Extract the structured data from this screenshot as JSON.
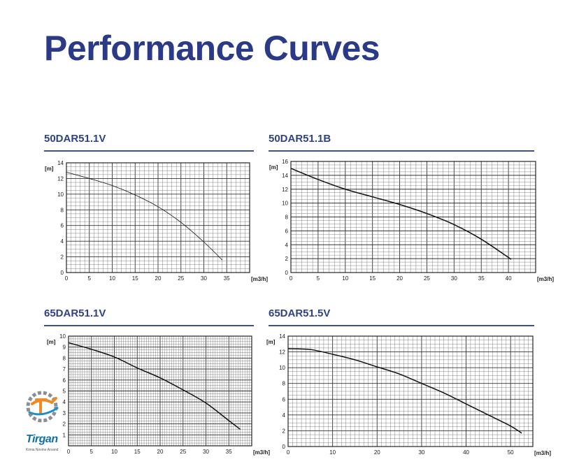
{
  "page": {
    "title": "Performance Curves"
  },
  "brand": {
    "name": "Tirgan",
    "tagline": "Kimia Novine Arvand"
  },
  "charts": [
    {
      "id": "50DAR51.1V",
      "title": "50DAR51.1V",
      "ylabel": "[m]",
      "xlabel": "[m3/h]"
    },
    {
      "id": "50DAR51.1B",
      "title": "50DAR51.1B",
      "ylabel": "[m]",
      "xlabel": "[m3/h]"
    },
    {
      "id": "65DAR51.1V",
      "title": "65DAR51.1V",
      "ylabel": "[m]",
      "xlabel": "[m3/h]"
    },
    {
      "id": "65DAR51.5V",
      "title": "65DAR51.5V",
      "ylabel": "[m]",
      "xlabel": "[m3/h]"
    }
  ],
  "chart_data": [
    {
      "type": "line",
      "title": "50DAR51.1V",
      "xlabel": "[m3/h]",
      "ylabel": "[m]",
      "xlim": [
        0,
        40
      ],
      "ylim": [
        0,
        14
      ],
      "xticks": [
        0,
        5,
        10,
        15,
        20,
        25,
        30,
        35
      ],
      "yticks": [
        0,
        2,
        4,
        6,
        8,
        10,
        12,
        14
      ],
      "grid": true,
      "series": [
        {
          "x": [
            0,
            5,
            10,
            15,
            20,
            25,
            30,
            34
          ],
          "y": [
            12.8,
            12.0,
            11.1,
            9.9,
            8.4,
            6.4,
            3.9,
            1.6
          ]
        }
      ]
    },
    {
      "type": "line",
      "title": "50DAR51.1B",
      "xlabel": "[m3/h]",
      "ylabel": "[m]",
      "xlim": [
        0,
        45
      ],
      "ylim": [
        0,
        16
      ],
      "xticks": [
        0,
        5,
        10,
        15,
        20,
        25,
        30,
        35,
        40
      ],
      "yticks": [
        0,
        2,
        4,
        6,
        8,
        10,
        12,
        14,
        16
      ],
      "grid": true,
      "series": [
        {
          "x": [
            0,
            5,
            10,
            15,
            20,
            25,
            30,
            35,
            40.5
          ],
          "y": [
            15.0,
            13.4,
            12.0,
            10.9,
            9.8,
            8.5,
            6.9,
            4.8,
            1.9
          ]
        }
      ]
    },
    {
      "type": "line",
      "title": "65DAR51.1V",
      "xlabel": "[m3/h]",
      "ylabel": "[m]",
      "xlim": [
        0,
        40
      ],
      "ylim": [
        0,
        10
      ],
      "xticks": [
        0,
        5,
        10,
        15,
        20,
        25,
        30,
        35
      ],
      "yticks": [
        1,
        2,
        3,
        4,
        5,
        6,
        7,
        8,
        9,
        10
      ],
      "grid": true,
      "series": [
        {
          "x": [
            0,
            5,
            10,
            15,
            20,
            25,
            30,
            35,
            37.5
          ],
          "y": [
            9.4,
            8.8,
            8.1,
            7.1,
            6.2,
            5.1,
            3.9,
            2.3,
            1.5
          ]
        }
      ]
    },
    {
      "type": "line",
      "title": "65DAR51.5V",
      "xlabel": "[m3/h]",
      "ylabel": "[m]",
      "xlim": [
        0,
        55
      ],
      "ylim": [
        0,
        14
      ],
      "xticks": [
        0,
        10,
        20,
        30,
        40,
        50
      ],
      "yticks": [
        0,
        2,
        4,
        6,
        8,
        10,
        12,
        14
      ],
      "grid": true,
      "series": [
        {
          "x": [
            0,
            5,
            10,
            15,
            20,
            25,
            30,
            35,
            40,
            45,
            50,
            52.5
          ],
          "y": [
            12.4,
            12.3,
            11.7,
            11.0,
            10.1,
            9.2,
            8.0,
            6.8,
            5.4,
            4.0,
            2.6,
            1.7
          ]
        }
      ]
    }
  ]
}
